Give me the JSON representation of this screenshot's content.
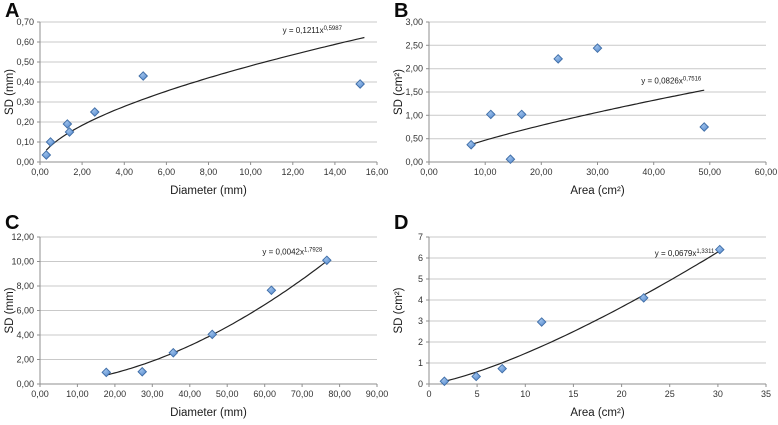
{
  "figure": {
    "background": "#ffffff",
    "description_panels": [
      "A",
      "B",
      "C",
      "D"
    ]
  },
  "colors": {
    "marker_fill": "#5b8ed1",
    "marker_fill_light": "#9cc0ea",
    "marker_stroke": "#3f6da6",
    "trendline": "#222222",
    "gridline": "#c9c9c9",
    "axis": "#8f8f8f",
    "tick_text": "#333333",
    "title_text": "#1a1a1a",
    "equation_text": "#1a1a1a",
    "panel_letter": "#0a0a0a"
  },
  "chart_data": [
    {
      "panel_label": "A",
      "type": "scatter",
      "x_title": "Diameter (mm)",
      "y_title": "SD (mm)",
      "x_range": [
        0,
        16
      ],
      "y_range": [
        0,
        0.7
      ],
      "x_tick_values": [
        0,
        2,
        4,
        6,
        8,
        10,
        12,
        14,
        16
      ],
      "x_tick_labels": [
        "0,00",
        "2,00",
        "4,00",
        "6,00",
        "8,00",
        "10,00",
        "12,00",
        "14,00",
        "16,00"
      ],
      "y_tick_values": [
        0,
        0.1,
        0.2,
        0.3,
        0.4,
        0.5,
        0.6,
        0.7
      ],
      "y_tick_labels": [
        "0,00",
        "0,10",
        "0,20",
        "0,30",
        "0,40",
        "0,50",
        "0,60",
        "0,70"
      ],
      "grid": "horizontal",
      "legend": "none",
      "points": [
        [
          0.3,
          0.035
        ],
        [
          0.5,
          0.1
        ],
        [
          1.3,
          0.19
        ],
        [
          1.4,
          0.15
        ],
        [
          2.6,
          0.25
        ],
        [
          4.9,
          0.43
        ],
        [
          15.2,
          0.39
        ]
      ],
      "trend": {
        "type": "power",
        "a": 0.1211,
        "b": 0.5987,
        "x_start": 0.3,
        "x_end": 15.4
      },
      "equation": {
        "base": "y = 0,1211x",
        "exponent": "0,5987",
        "fx": 0.72,
        "fy": 0.08
      }
    },
    {
      "panel_label": "B",
      "type": "scatter",
      "x_title": "Area (cm²)",
      "y_title": "SD (cm²)",
      "x_range": [
        0,
        60
      ],
      "y_range": [
        0,
        3
      ],
      "x_tick_values": [
        0,
        10,
        20,
        30,
        40,
        50,
        60
      ],
      "x_tick_labels": [
        "0,00",
        "10,00",
        "20,00",
        "30,00",
        "40,00",
        "50,00",
        "60,00"
      ],
      "y_tick_values": [
        0,
        0.5,
        1,
        1.5,
        2,
        2.5,
        3
      ],
      "y_tick_labels": [
        "0,00",
        "0,50",
        "1,00",
        "1,50",
        "2,00",
        "2,50",
        "3,00"
      ],
      "grid": "horizontal",
      "legend": "none",
      "points": [
        [
          7.5,
          0.37
        ],
        [
          11,
          1.02
        ],
        [
          14.5,
          0.06
        ],
        [
          16.5,
          1.02
        ],
        [
          23,
          2.21
        ],
        [
          30,
          2.44
        ],
        [
          49,
          0.75
        ]
      ],
      "trend": {
        "type": "power",
        "a": 0.0826,
        "b": 0.7516,
        "x_start": 7.5,
        "x_end": 49
      },
      "equation": {
        "base": "y = 0,0826x",
        "exponent": "0,7516",
        "fx": 0.63,
        "fy": 0.44
      }
    },
    {
      "panel_label": "C",
      "type": "scatter",
      "x_title": "Diameter (mm)",
      "y_title": "SD (mm)",
      "x_range": [
        0,
        90
      ],
      "y_range": [
        0,
        12
      ],
      "x_tick_values": [
        0,
        10,
        20,
        30,
        40,
        50,
        60,
        70,
        80,
        90
      ],
      "x_tick_labels": [
        "0,00",
        "10,00",
        "20,00",
        "30,00",
        "40,00",
        "50,00",
        "60,00",
        "70,00",
        "80,00",
        "90,00"
      ],
      "y_tick_values": [
        0,
        2,
        4,
        6,
        8,
        10,
        12
      ],
      "y_tick_labels": [
        "0,00",
        "2,00",
        "4,00",
        "6,00",
        "8,00",
        "10,00",
        "12,00"
      ],
      "grid": "horizontal",
      "legend": "none",
      "points": [
        [
          17.7,
          0.95
        ],
        [
          27.3,
          1.0
        ],
        [
          35.6,
          2.55
        ],
        [
          46,
          4.05
        ],
        [
          61.8,
          7.65
        ],
        [
          76.6,
          10.1
        ]
      ],
      "trend": {
        "type": "power",
        "a": 0.0042,
        "b": 1.7928,
        "x_start": 17.7,
        "x_end": 76.6
      },
      "equation": {
        "base": "y = 0,0042x",
        "exponent": "1,7928",
        "fx": 0.66,
        "fy": 0.12
      }
    },
    {
      "panel_label": "D",
      "type": "scatter",
      "x_title": "Area (cm²)",
      "y_title": "SD (cm²)",
      "x_range": [
        0,
        35
      ],
      "y_range": [
        0,
        7
      ],
      "x_tick_values": [
        0,
        5,
        10,
        15,
        20,
        25,
        30,
        35
      ],
      "x_tick_labels": [
        "0",
        "5",
        "10",
        "15",
        "20",
        "25",
        "30",
        "35"
      ],
      "y_tick_values": [
        0,
        1,
        2,
        3,
        4,
        5,
        6,
        7
      ],
      "y_tick_labels": [
        "0",
        "1",
        "2",
        "3",
        "4",
        "5",
        "6",
        "7"
      ],
      "grid": "horizontal",
      "legend": "none",
      "points": [
        [
          1.6,
          0.13
        ],
        [
          4.9,
          0.36
        ],
        [
          7.6,
          0.73
        ],
        [
          11.7,
          2.95
        ],
        [
          22.3,
          4.1
        ],
        [
          30.2,
          6.4
        ]
      ],
      "trend": {
        "type": "power",
        "a": 0.0679,
        "b": 1.3311,
        "x_start": 1.6,
        "x_end": 30.3
      },
      "equation": {
        "base": "y = 0,0679x",
        "exponent": "1,3311",
        "fx": 0.67,
        "fy": 0.13
      }
    }
  ]
}
